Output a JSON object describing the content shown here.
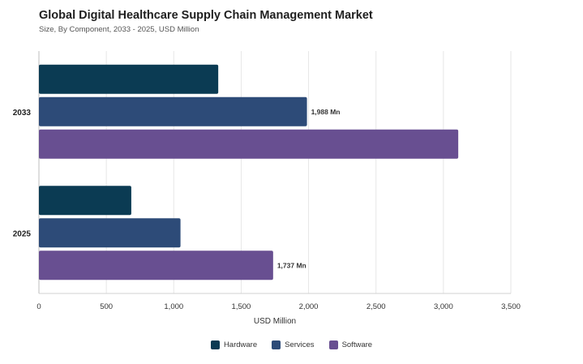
{
  "chart_data": {
    "type": "bar",
    "orientation": "horizontal",
    "title": "Global Digital Healthcare Supply Chain Management Market",
    "subtitle": "Size, By Component, 2033 - 2025, USD Million",
    "xlabel": "USD Million",
    "ylabel": "",
    "xlim": [
      0,
      3500
    ],
    "x_ticks": [
      "0",
      "500",
      "1,000",
      "1,500",
      "2,000",
      "2,500",
      "3,000",
      "3,500"
    ],
    "x_tick_values": [
      0,
      500,
      1000,
      1500,
      2000,
      2500,
      3000,
      3500
    ],
    "categories": [
      "2033",
      "2025"
    ],
    "series": [
      {
        "name": "Hardware",
        "color": "#0b3b53",
        "values": [
          1330,
          685
        ]
      },
      {
        "name": "Services",
        "color": "#2d4b78",
        "values": [
          1988,
          1050
        ]
      },
      {
        "name": "Software",
        "color": "#684f91",
        "values": [
          3110,
          1737
        ]
      }
    ],
    "data_labels": [
      {
        "category": "2033",
        "series": "Services",
        "text": "1,988 Mn"
      },
      {
        "category": "2025",
        "series": "Software",
        "text": "1,737 Mn"
      }
    ],
    "grid": true,
    "legend_position": "bottom"
  }
}
